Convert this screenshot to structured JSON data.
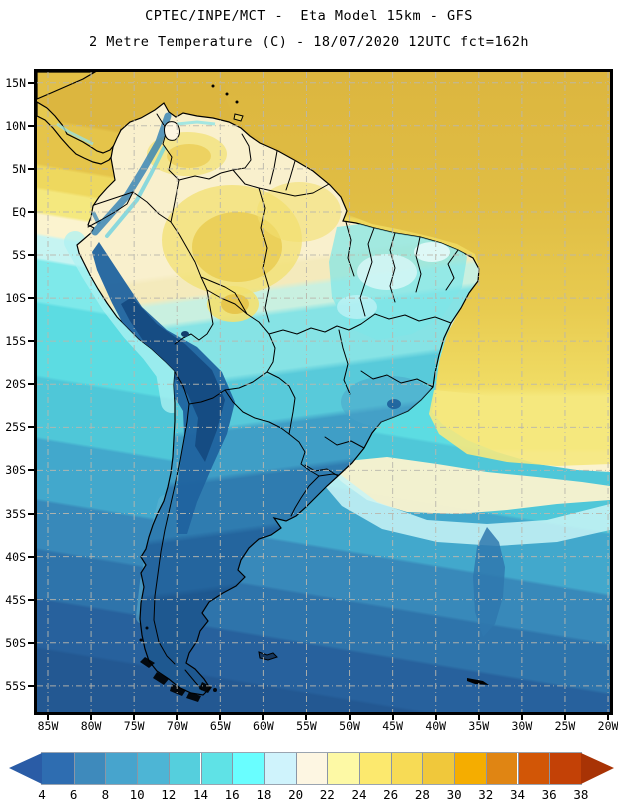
{
  "header": {
    "line1": "CPTEC/INPE/MCT -  Eta Model 15km - GFS",
    "line2": "2 Metre Temperature (C) - 18/07/2020 12UTC fct=162h"
  },
  "map": {
    "lat_labels": [
      "15N",
      "10N",
      "5N",
      "EQ",
      "5S",
      "10S",
      "15S",
      "20S",
      "25S",
      "30S",
      "35S",
      "40S",
      "45S",
      "50S",
      "55S"
    ],
    "lon_labels": [
      "85W",
      "80W",
      "75W",
      "70W",
      "65W",
      "60W",
      "55W",
      "50W",
      "45W",
      "40W",
      "35W",
      "30W",
      "25W",
      "20W"
    ]
  },
  "colorbar": {
    "tick_labels": [
      "4",
      "6",
      "8",
      "10",
      "12",
      "14",
      "16",
      "18",
      "20",
      "22",
      "24",
      "26",
      "28",
      "30",
      "32",
      "34",
      "36",
      "38"
    ],
    "cell_colors": [
      "#2e6db1",
      "#3e8abc",
      "#47a4cd",
      "#4db5d5",
      "#55cfdd",
      "#5fe2e6",
      "#69feff",
      "#cff3fc",
      "#fdf6e2",
      "#fdf9a5",
      "#fce96e",
      "#f7db55",
      "#f0c83b",
      "#f5ad00",
      "#e08513",
      "#d25606",
      "#c34106"
    ],
    "arrow_left_color": "#2a5ca6",
    "arrow_right_color": "#a83305"
  }
}
